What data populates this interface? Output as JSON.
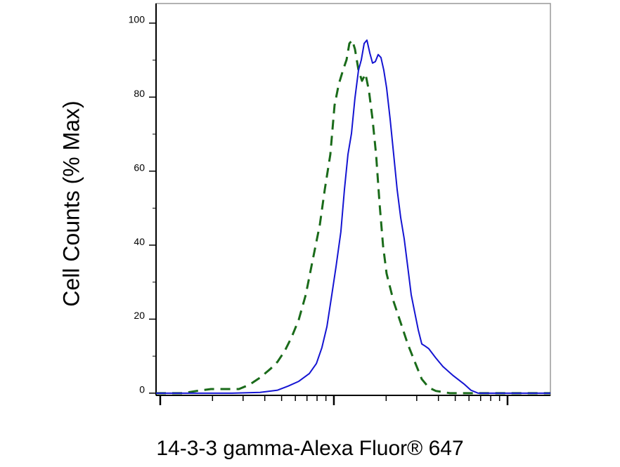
{
  "chart_data": {
    "type": "line",
    "xlabel": "14-3-3 gamma-Alexa Fluor® 647",
    "ylabel": "Cell Counts (% Max)",
    "xscale": "log",
    "xlim": [
      94.6,
      17660
    ],
    "xticks": [
      100,
      1000,
      10000
    ],
    "xminorticks": [
      200,
      300,
      400,
      500,
      600,
      700,
      800,
      900,
      2000,
      3000,
      4000,
      5000,
      6000,
      7000,
      8000,
      9000
    ],
    "ylim": [
      -0.6,
      105.3
    ],
    "yticks": [
      0,
      20,
      40,
      60,
      80,
      100
    ],
    "yminorticks": [
      10,
      30,
      50,
      70,
      90
    ],
    "series": [
      {
        "color": "#1a6b1a",
        "dash": true,
        "x": [
          94.6,
          135,
          162,
          196,
          284,
          327,
          376,
          432,
          474,
          521,
          572,
          628,
          689,
          756,
          830,
          886,
          954,
          1009,
          1067,
          1129,
          1183,
          1228,
          1275,
          1322,
          1386,
          1452,
          1521,
          1593,
          1670,
          1750,
          1833,
          1920,
          2012,
          2109,
          2210,
          2426,
          2662,
          2922,
          3207,
          3521,
          3864,
          4656,
          8147,
          17660
        ],
        "values": [
          0,
          0,
          0.6,
          1.1,
          1.1,
          2.3,
          4.2,
          6.6,
          8.5,
          11.4,
          15.2,
          19.9,
          26.6,
          36.1,
          45.5,
          55,
          64.5,
          77.8,
          83.5,
          87.3,
          90.1,
          94.5,
          95.4,
          93,
          87.3,
          84.4,
          86.3,
          81.6,
          74,
          64.5,
          51.2,
          39.8,
          32.3,
          28.5,
          24.7,
          19,
          13.3,
          8.5,
          3.8,
          1.5,
          0.6,
          0,
          0,
          0
        ]
      },
      {
        "color": "#1414d2",
        "dash": false,
        "x": [
          94.6,
          162,
          259,
          376,
          474,
          545,
          628,
          722,
          793,
          853,
          912,
          973,
          1029,
          1097,
          1150,
          1205,
          1263,
          1322,
          1386,
          1439,
          1494,
          1550,
          1609,
          1670,
          1733,
          1799,
          1867,
          1938,
          2012,
          2109,
          2210,
          2314,
          2426,
          2541,
          2662,
          2788,
          2922,
          3061,
          3207,
          3359,
          3521,
          3864,
          4244,
          4876,
          5608,
          6152,
          6761,
          8147,
          17660
        ],
        "values": [
          0,
          0,
          0,
          0.2,
          0.8,
          1.9,
          3.2,
          5.3,
          8,
          12.3,
          18,
          26.6,
          34.2,
          43.6,
          55,
          64.5,
          70.2,
          79.7,
          87.3,
          90.1,
          94.5,
          95.4,
          92,
          89.2,
          89.6,
          91.5,
          90.7,
          87.3,
          82.5,
          74,
          64.5,
          55,
          47.4,
          41.7,
          34.2,
          26.6,
          21.8,
          17.1,
          13.3,
          12.7,
          12,
          9.5,
          7.2,
          4.7,
          2.5,
          0.8,
          0,
          0,
          0
        ]
      }
    ]
  }
}
